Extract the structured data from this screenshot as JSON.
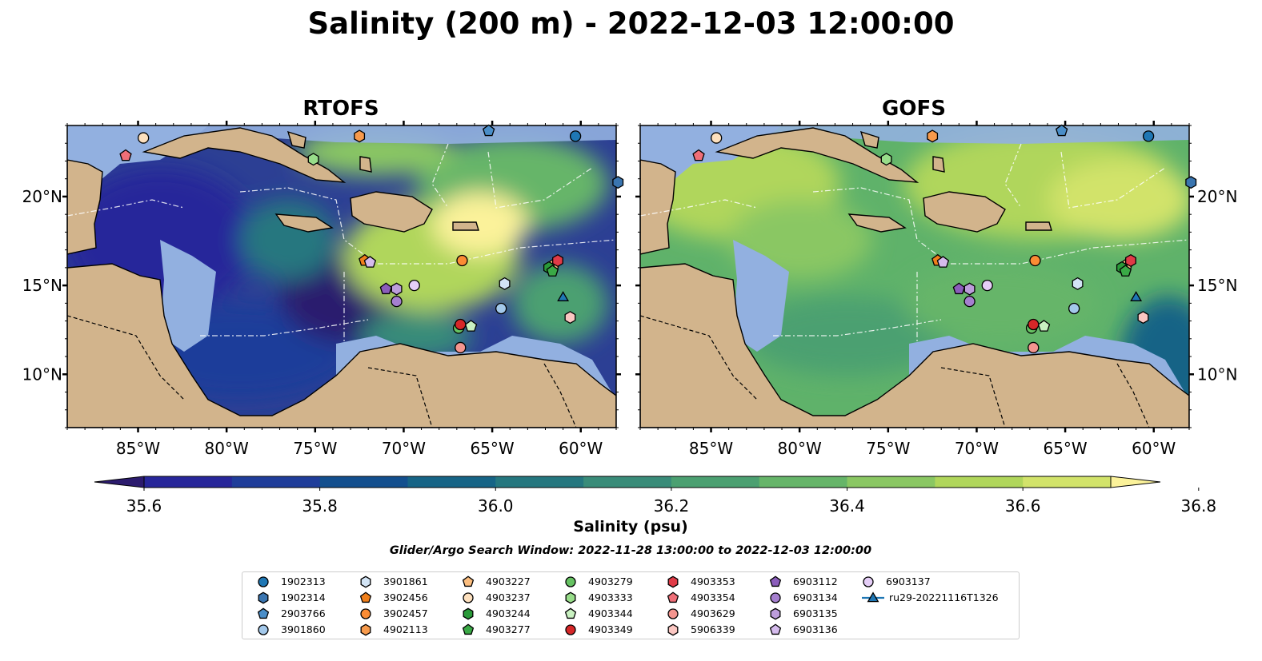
{
  "title": "Salinity (200 m) - 2022-12-03 12:00:00",
  "panels": [
    {
      "id": "rtofs",
      "title": "RTOFS"
    },
    {
      "id": "gofs",
      "title": "GOFS"
    }
  ],
  "map_extent": {
    "lon": [
      -89,
      -58
    ],
    "lat": [
      7,
      24
    ]
  },
  "lon_ticks": [
    {
      "value": -85,
      "label": "85°W"
    },
    {
      "value": -80,
      "label": "80°W"
    },
    {
      "value": -75,
      "label": "75°W"
    },
    {
      "value": -70,
      "label": "70°W"
    },
    {
      "value": -65,
      "label": "65°W"
    },
    {
      "value": -60,
      "label": "60°W"
    }
  ],
  "lat_ticks": [
    {
      "value": 20,
      "label": "20°N"
    },
    {
      "value": 15,
      "label": "15°N"
    },
    {
      "value": 10,
      "label": "10°N"
    }
  ],
  "colorbar": {
    "label": "Salinity (psu)",
    "min": 35.5,
    "max": 37.0,
    "step": 0.1,
    "extend": "both",
    "colors": [
      "#2c1b6e",
      "#27269a",
      "#1f3d9a",
      "#134f8e",
      "#166486",
      "#25777f",
      "#398c79",
      "#4ba071",
      "#66b569",
      "#8ac763",
      "#b0d65b",
      "#d2e36a",
      "#fbf29a"
    ],
    "ticks": [
      {
        "value": 35.6,
        "label": "35.6"
      },
      {
        "value": 35.8,
        "label": "35.8"
      },
      {
        "value": 36.0,
        "label": "36.0"
      },
      {
        "value": 36.2,
        "label": "36.2"
      },
      {
        "value": 36.4,
        "label": "36.4"
      },
      {
        "value": 36.6,
        "label": "36.6"
      },
      {
        "value": 36.8,
        "label": "36.8"
      }
    ]
  },
  "colors": {
    "land": "#d2b48c",
    "shelf": "#92b0e0",
    "rtofs_base": "#2c3f94",
    "gofs_base": "#5fb26a"
  },
  "search_window": "Glider/Argo Search Window: 2022-11-28 13:00:00 to 2022-12-03 12:00:00",
  "platforms": [
    {
      "id": "1902313",
      "marker": "circle",
      "color": "#1f77b4",
      "lon": -60.3,
      "lat": 23.4
    },
    {
      "id": "1902314",
      "marker": "hexagon",
      "color": "#3a75b0",
      "lon": -57.9,
      "lat": 20.8
    },
    {
      "id": "2903766",
      "marker": "pentagon",
      "color": "#4a8ec8",
      "lon": -65.2,
      "lat": 23.7
    },
    {
      "id": "3901860",
      "marker": "circle",
      "color": "#a3c8ea",
      "lon": -64.5,
      "lat": 13.7
    },
    {
      "id": "3901861",
      "marker": "hexagon",
      "color": "#d2e4f5",
      "lon": -64.3,
      "lat": 15.1
    },
    {
      "id": "3902456",
      "marker": "pentagon",
      "color": "#f07f1b",
      "lon": -72.2,
      "lat": 16.4
    },
    {
      "id": "3902457",
      "marker": "circle",
      "color": "#fb8c34",
      "lon": -66.7,
      "lat": 16.4
    },
    {
      "id": "4902113",
      "marker": "hexagon",
      "color": "#f79a4b",
      "lon": -72.5,
      "lat": 23.4
    },
    {
      "id": "4903227",
      "marker": "pentagon",
      "color": "#fcbe7f",
      "lon": -61.5,
      "lat": 16.2
    },
    {
      "id": "4903237",
      "marker": "circle",
      "color": "#fde0be",
      "lon": -84.7,
      "lat": 23.3
    },
    {
      "id": "4903244",
      "marker": "hexagon",
      "color": "#2a9a39",
      "lon": -61.8,
      "lat": 16.0
    },
    {
      "id": "4903277",
      "marker": "pentagon",
      "color": "#3aa946",
      "lon": -61.6,
      "lat": 15.8
    },
    {
      "id": "4903279",
      "marker": "circle",
      "color": "#66c262",
      "lon": -66.9,
      "lat": 12.6
    },
    {
      "id": "4903333",
      "marker": "hexagon",
      "color": "#98dd8a",
      "lon": -75.1,
      "lat": 22.1
    },
    {
      "id": "4903344",
      "marker": "pentagon",
      "color": "#c9f1c1",
      "lon": -66.2,
      "lat": 12.7
    },
    {
      "id": "4903349",
      "marker": "circle",
      "color": "#d62728",
      "lon": -66.8,
      "lat": 12.8
    },
    {
      "id": "4903353",
      "marker": "hexagon",
      "color": "#e03b47",
      "lon": -61.3,
      "lat": 16.4
    },
    {
      "id": "4903354",
      "marker": "pentagon",
      "color": "#ef6f78",
      "lon": -85.7,
      "lat": 22.3
    },
    {
      "id": "4903629",
      "marker": "circle",
      "color": "#f4958f",
      "lon": -66.8,
      "lat": 11.5
    },
    {
      "id": "5906339",
      "marker": "hexagon",
      "color": "#fbc7c2",
      "lon": -60.6,
      "lat": 13.2
    },
    {
      "id": "6903112",
      "marker": "pentagon",
      "color": "#8b5dbb",
      "lon": -71.0,
      "lat": 14.8
    },
    {
      "id": "6903134",
      "marker": "circle",
      "color": "#a57fcf",
      "lon": -70.4,
      "lat": 14.1
    },
    {
      "id": "6903135",
      "marker": "hexagon",
      "color": "#bc9ddb",
      "lon": -70.4,
      "lat": 14.8
    },
    {
      "id": "6903136",
      "marker": "pentagon",
      "color": "#d5bbed",
      "lon": -71.9,
      "lat": 16.3
    },
    {
      "id": "6903137",
      "marker": "circle",
      "color": "#e5cef7",
      "lon": -69.4,
      "lat": 15.0
    },
    {
      "id": "ru29-20221116T1326",
      "marker": "triangle",
      "color": "#1f77b4",
      "lon": -61.0,
      "lat": 14.3
    }
  ]
}
